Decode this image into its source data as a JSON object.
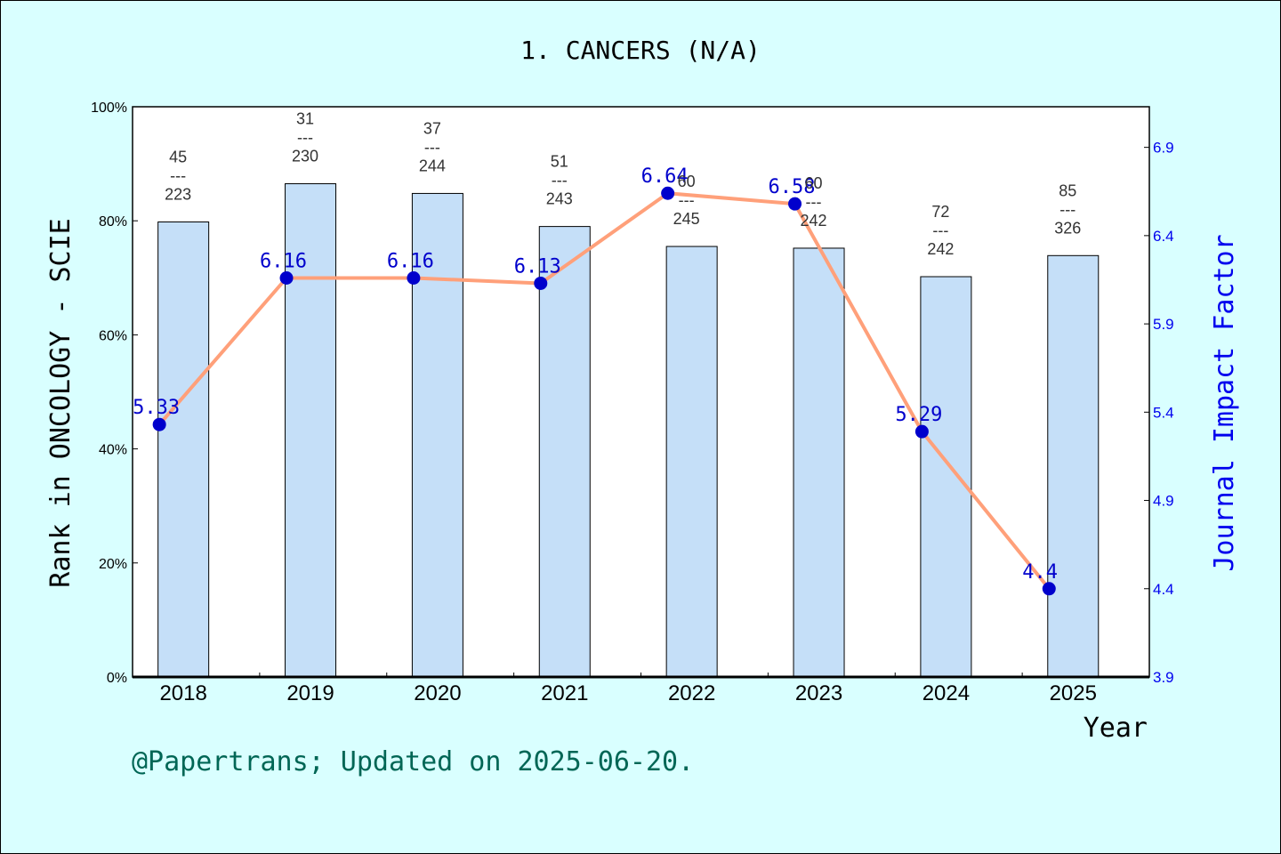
{
  "chart_data": {
    "type": "bar",
    "title": "1. CANCERS (N/A)",
    "xlabel": "Year",
    "ylabel_left": "Rank in ONCOLOGY - SCIE",
    "ylabel_right": "Journal Impact Factor",
    "categories": [
      "2018",
      "2019",
      "2020",
      "2021",
      "2022",
      "2023",
      "2024",
      "2025"
    ],
    "left_axis": {
      "ylim": [
        0,
        100
      ],
      "ticks": [
        "0%",
        "20%",
        "40%",
        "60%",
        "80%",
        "100%"
      ],
      "tick_values": [
        0,
        20,
        40,
        60,
        80,
        100
      ]
    },
    "right_axis": {
      "ylim": [
        3.9,
        7.13
      ],
      "ticks": [
        "3.9",
        "4.4",
        "4.9",
        "5.4",
        "5.9",
        "6.4",
        "6.9"
      ],
      "tick_values": [
        3.9,
        4.4,
        4.9,
        5.4,
        5.9,
        6.4,
        6.9
      ]
    },
    "bars": {
      "values": [
        79.8,
        86.5,
        84.8,
        79.0,
        75.5,
        75.2,
        70.2,
        73.9
      ],
      "rank": [
        "45",
        "31",
        "37",
        "51",
        "60",
        "60",
        "72",
        "85"
      ],
      "total": [
        "223",
        "230",
        "244",
        "243",
        "245",
        "242",
        "242",
        "326"
      ],
      "separator": "---",
      "color": "#c5dff8"
    },
    "line": {
      "values": [
        5.33,
        6.16,
        6.16,
        6.13,
        6.64,
        6.58,
        5.29,
        4.4
      ],
      "labels": [
        "5.33",
        "6.16",
        "6.16",
        "6.13",
        "6.64",
        "6.58",
        "5.29",
        "4.4"
      ],
      "color": "#ffa07a",
      "marker_color": "#0000cc",
      "label_color": "#0000cc"
    }
  },
  "footer": "@Papertrans; Updated on 2025-06-20."
}
